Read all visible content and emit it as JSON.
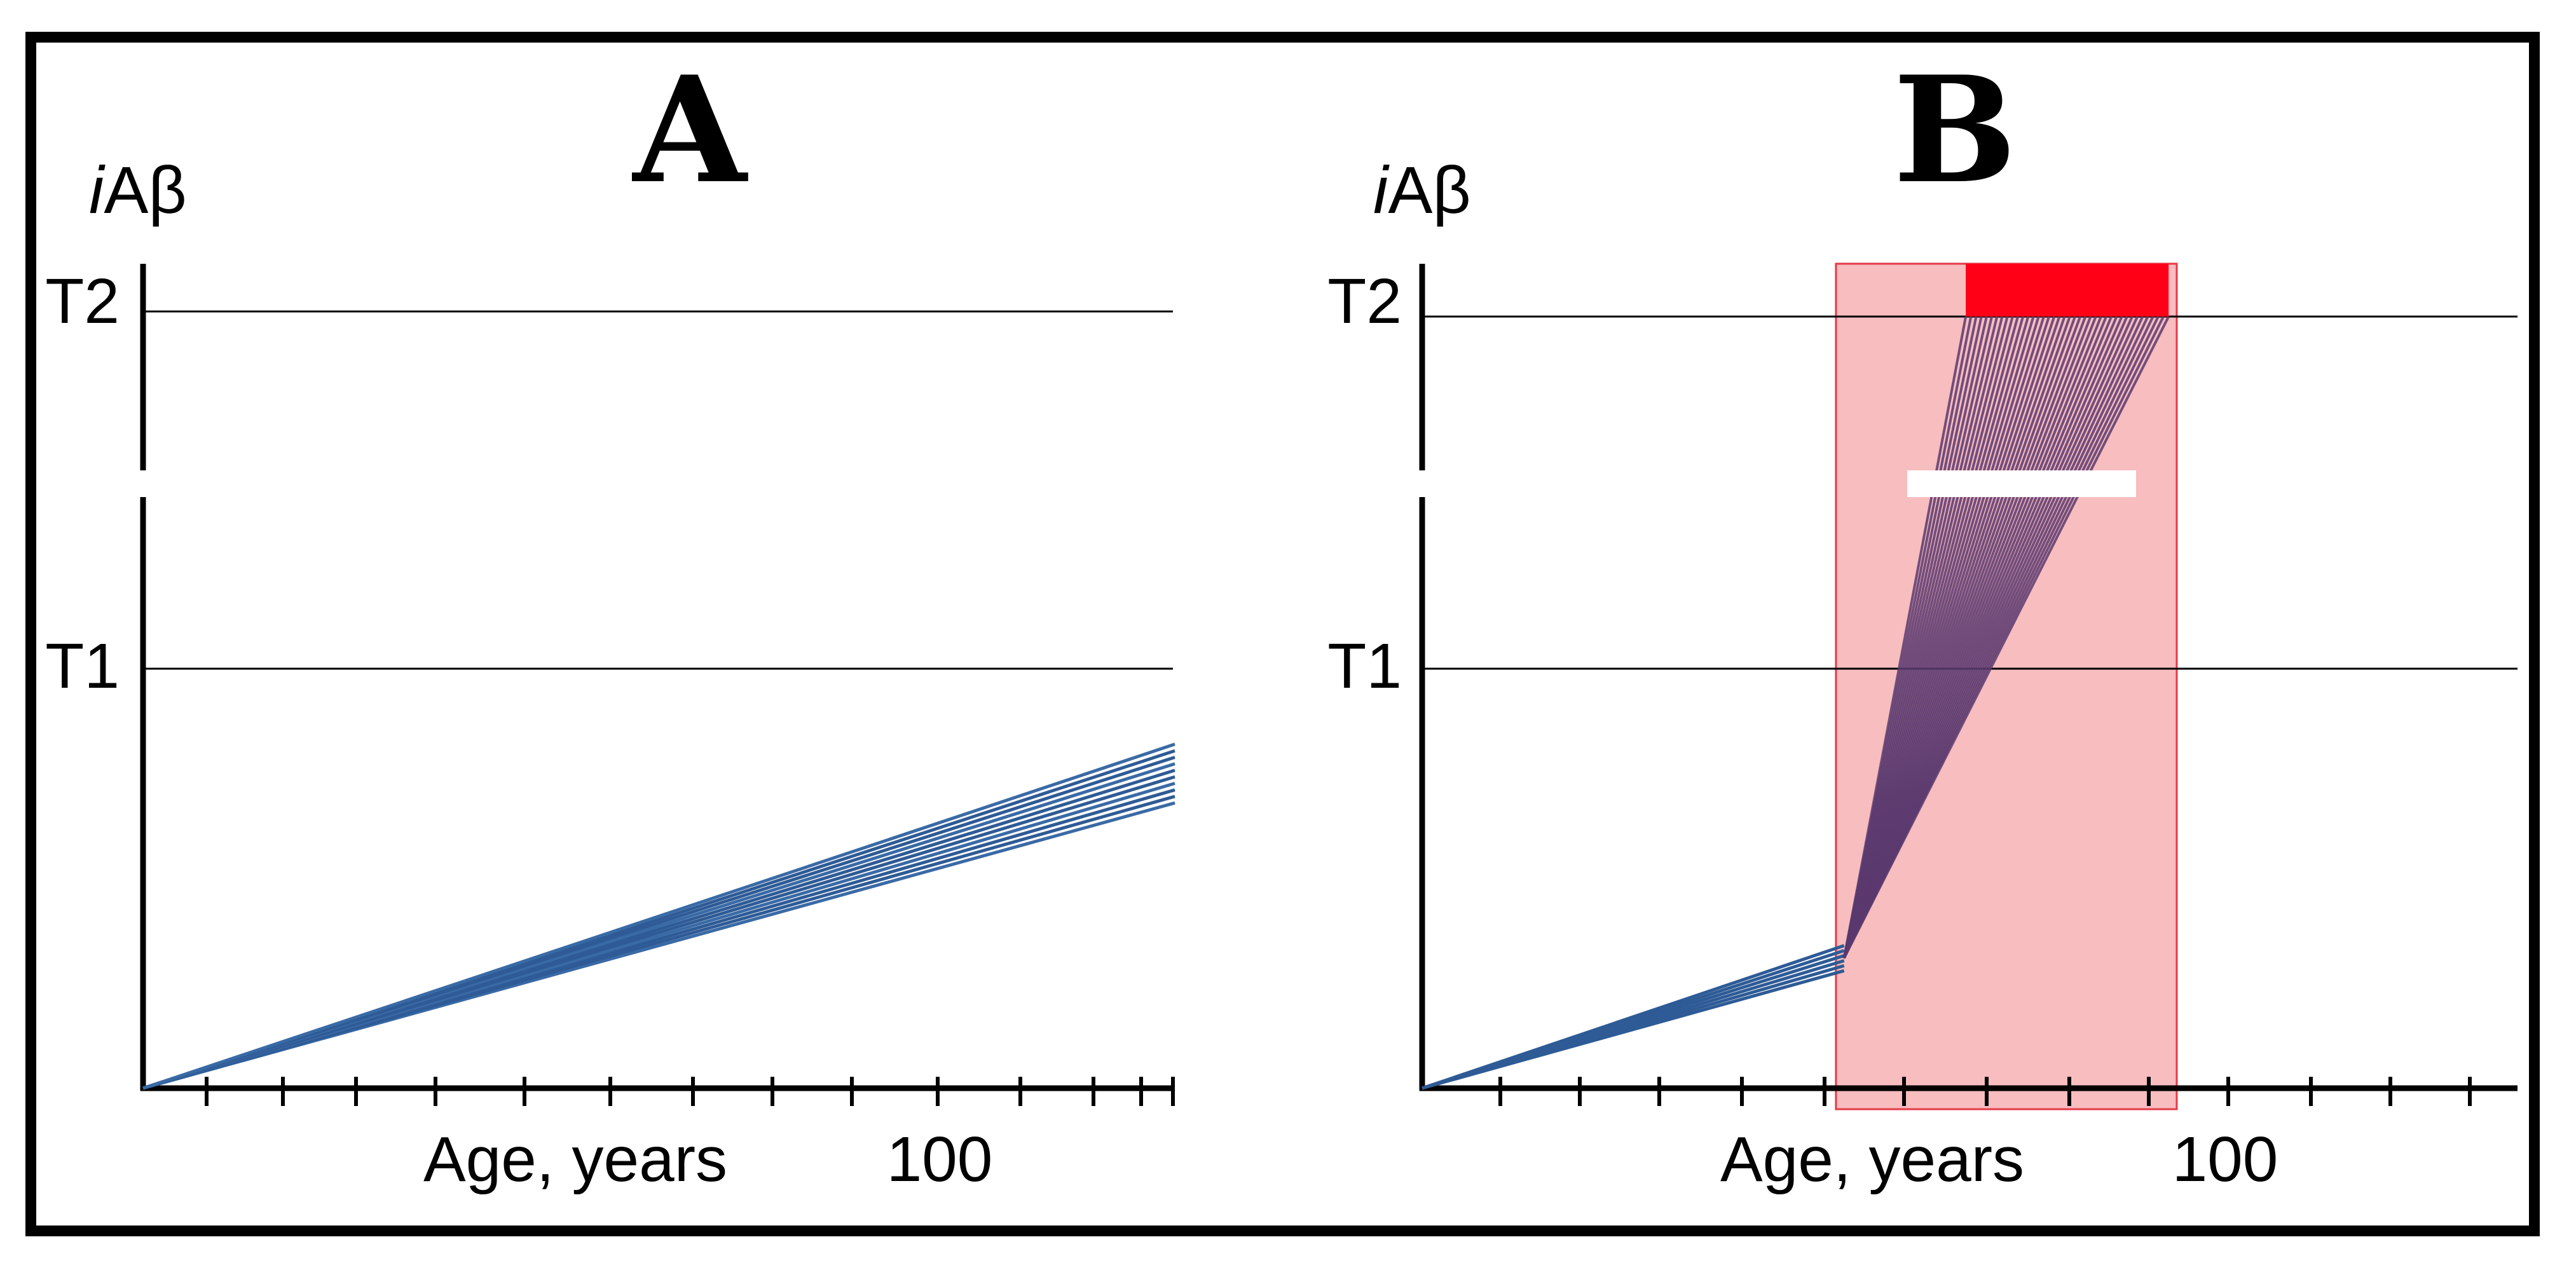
{
  "chart_data": [
    {
      "type": "line",
      "panel": "A",
      "ylabel_italic": "i",
      "ylabel_rest": "Aβ",
      "xlabel": "Age, years",
      "x_tick_label": "100",
      "y_thresholds": [
        {
          "name": "T1",
          "value": 1.0
        },
        {
          "name": "T2",
          "value": 2.0
        }
      ],
      "y_axis_break": true,
      "xlim": [
        0,
        125
      ],
      "ylim": [
        0,
        2.0
      ],
      "series": {
        "color": "#2e5b96",
        "count": 10,
        "x_start": 0,
        "y_start": 0,
        "x_end": 125,
        "y_end_min": 0.68,
        "y_end_max": 0.82
      }
    },
    {
      "type": "line",
      "panel": "B",
      "ylabel_italic": "i",
      "ylabel_rest": "Aβ",
      "xlabel": "Age, years",
      "x_tick_label": "100",
      "y_thresholds": [
        {
          "name": "T1",
          "value": 1.0
        },
        {
          "name": "T2",
          "value": 2.0
        }
      ],
      "y_axis_break": true,
      "xlim": [
        0,
        135
      ],
      "ylim": [
        0,
        2.0
      ],
      "baseline": {
        "color": "#2e5b96",
        "count": 6,
        "x_start": 0,
        "y_start": 0,
        "x_end": 52,
        "y_end_min": 0.28,
        "y_end_max": 0.34
      },
      "fan": {
        "color": "#5a3a6e",
        "count": 40,
        "x_start": 52,
        "y_start": 0.31,
        "x_end_min": 67,
        "x_end_max": 92,
        "y_end": 2.0
      },
      "highlight_region": {
        "x_min": 51,
        "x_max": 93,
        "y_min": -0.05,
        "y_max": 2.15,
        "color": "#f4a3a6"
      },
      "onset_band": {
        "x_min": 67,
        "x_max": 92,
        "y_min": 2.0,
        "y_max": 2.15,
        "color": "#ff0016"
      }
    }
  ]
}
